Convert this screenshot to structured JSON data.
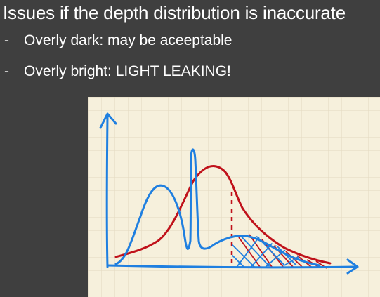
{
  "slide": {
    "title": "Issues if the depth distribution is inaccurate",
    "bullets": [
      {
        "marker": "-",
        "text": "Overly dark: may be aceeptable"
      },
      {
        "marker": "-",
        "text": "Overly bright: LIGHT LEAKING!"
      }
    ]
  },
  "figure": {
    "kind": "hand-drawn sketch on grid paper",
    "colors": {
      "paper": "#f6f0dc",
      "grid": "#e3d9c0",
      "axes": "#1f7fe0",
      "blue_curve": "#1f7fe0",
      "red_curve": "#c0121b"
    }
  }
}
